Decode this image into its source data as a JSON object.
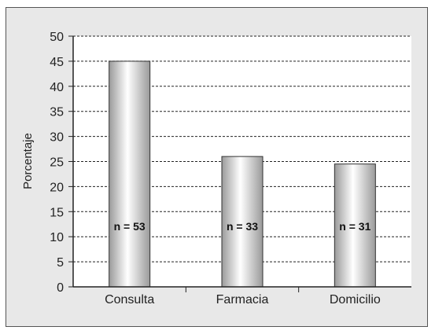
{
  "chart_data": {
    "type": "bar",
    "categories": [
      "Consulta",
      "Farmacia",
      "Domicilio"
    ],
    "values": [
      45,
      26,
      24.5
    ],
    "annotations": [
      "n = 53",
      "n = 33",
      "n = 31"
    ],
    "ylabel": "Porcentaje",
    "xlabel": "",
    "title": "",
    "ylim": [
      0,
      50
    ],
    "yticks": [
      "0",
      "5",
      "10",
      "15",
      "20",
      "25",
      "30",
      "35",
      "40",
      "45",
      "50"
    ],
    "grid": "horizontal dashed",
    "colors": {
      "background": "#e8e8e8",
      "plot_area": "#ffffff",
      "bar_light": "#ffffff",
      "bar_dark": "#999999",
      "axis": "#222222",
      "grid": "#222222"
    }
  }
}
